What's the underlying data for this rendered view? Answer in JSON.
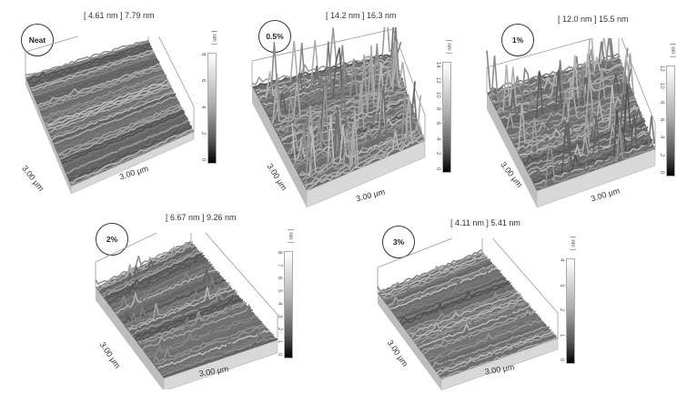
{
  "panels": [
    {
      "id": "neat",
      "badge": "Neat",
      "header": "[ 4.61 nm ] 7.79 nm",
      "x_label": "3.00 μm",
      "y_label": "3.00 μm",
      "unit": "[ nm ]",
      "ticks": [
        "8",
        "6",
        "4",
        "2",
        "0"
      ],
      "roughness": 0.25
    },
    {
      "id": "p05",
      "badge": "0.5%",
      "header": "[ 14.2 nm ] 16.3 nm",
      "x_label": "3.00 μm",
      "y_label": "3.00 μm",
      "unit": "[ nm ]",
      "ticks": [
        "14",
        "12",
        "10",
        "8",
        "6",
        "4",
        "2",
        "0"
      ],
      "roughness": 1.0
    },
    {
      "id": "p1",
      "badge": "1%",
      "header": "[ 12.0 nm ] 15.5 nm",
      "x_label": "3.00 μm",
      "y_label": "3.00 μm",
      "unit": "[ nm ]",
      "ticks": [
        "12",
        "10",
        "8",
        "6",
        "4",
        "2",
        "0"
      ],
      "roughness": 0.85
    },
    {
      "id": "p2",
      "badge": "2%",
      "header": "[ 6.67 nm ] 9.26 nm",
      "x_label": "3.00 μm",
      "y_label": "3.00 μm",
      "unit": "[ nm ]",
      "ticks": [
        "8",
        "7",
        "6",
        "5",
        "4",
        "3",
        "2",
        "1",
        "0"
      ],
      "roughness": 0.45
    },
    {
      "id": "p3",
      "badge": "3%",
      "header": "[ 4.11 nm ] 5.41 nm",
      "x_label": "3.00 μm",
      "y_label": "3.00 μm",
      "unit": "[ nm ]",
      "ticks": [
        "4",
        "3",
        "2",
        "1",
        "0"
      ],
      "roughness": 0.3
    }
  ]
}
